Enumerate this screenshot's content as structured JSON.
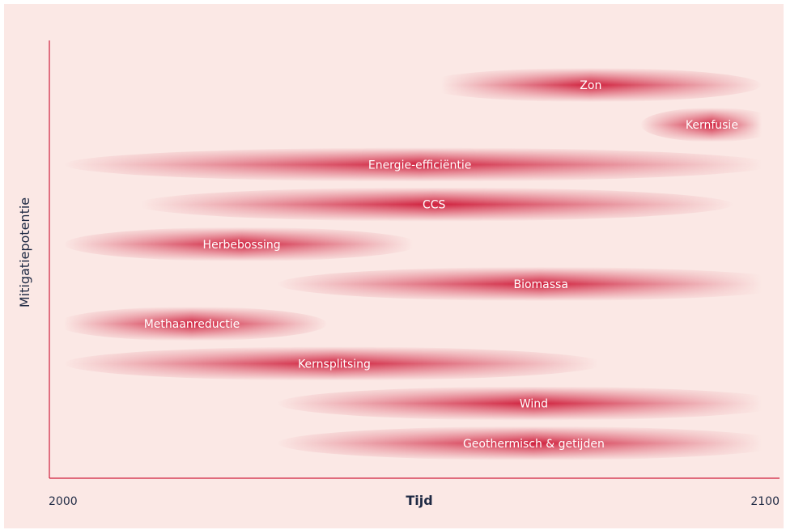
{
  "chart_data": {
    "type": "bar",
    "xlabel": "Tijd",
    "ylabel": "Mitigatiepotentie",
    "xlim": [
      2000,
      2100
    ],
    "x_ticks": [
      "2000",
      "2100"
    ],
    "grid": false,
    "series": [
      {
        "name": "Zon",
        "start": 2055,
        "end": 2100,
        "peak": 2076
      },
      {
        "name": "Kernfusie",
        "start": 2083,
        "end": 2101,
        "peak": 2093
      },
      {
        "name": "Energie-efficiëntie",
        "start": 2002,
        "end": 2101,
        "peak": 2052
      },
      {
        "name": "CCS",
        "start": 2013,
        "end": 2096,
        "peak": 2054
      },
      {
        "name": "Herbebossing",
        "start": 2002,
        "end": 2051,
        "peak": 2027
      },
      {
        "name": "Biomassa",
        "start": 2032,
        "end": 2101,
        "peak": 2069
      },
      {
        "name": "Methaanreductie",
        "start": 2002,
        "end": 2039,
        "peak": 2020
      },
      {
        "name": "Kernsplitsing",
        "start": 2002,
        "end": 2077,
        "peak": 2040
      },
      {
        "name": "Wind",
        "start": 2032,
        "end": 2101,
        "peak": 2068
      },
      {
        "name": "Geothermisch & getijden",
        "start": 2032,
        "end": 2101,
        "peak": 2068
      }
    ]
  },
  "colors": {
    "background": "#fbe8e5",
    "bar": "#cf1f3c",
    "axis": "#cf1f3c",
    "text": "#1f2a44"
  }
}
